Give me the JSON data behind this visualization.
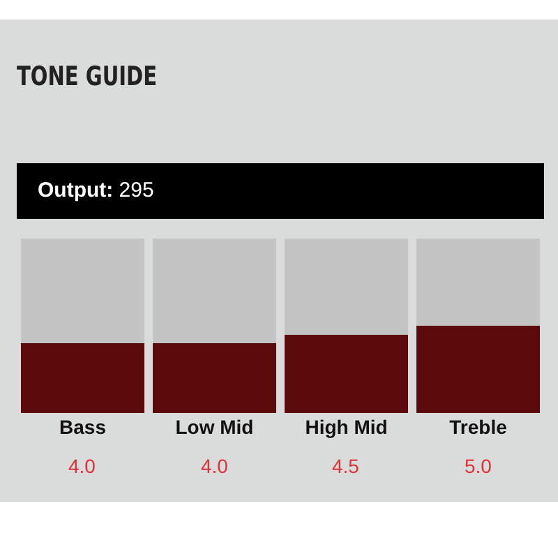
{
  "chart_data": {
    "type": "bar",
    "title": "TONE GUIDE",
    "annotations": [
      "Output: 295"
    ],
    "categories": [
      "Bass",
      "Low Mid",
      "High Mid",
      "Treble"
    ],
    "stacked": true,
    "series": [
      {
        "color": "#5a0a0a",
        "values": [
          4.0,
          4.0,
          4.5,
          5.0
        ],
        "value_labels": [
          "4.0",
          "4.0",
          "4.5",
          "5.0"
        ]
      },
      {
        "color": "#c4c4c4",
        "values": [
          6.0,
          6.0,
          5.5,
          5.0
        ]
      }
    ],
    "ylim": [
      0,
      10
    ]
  }
}
